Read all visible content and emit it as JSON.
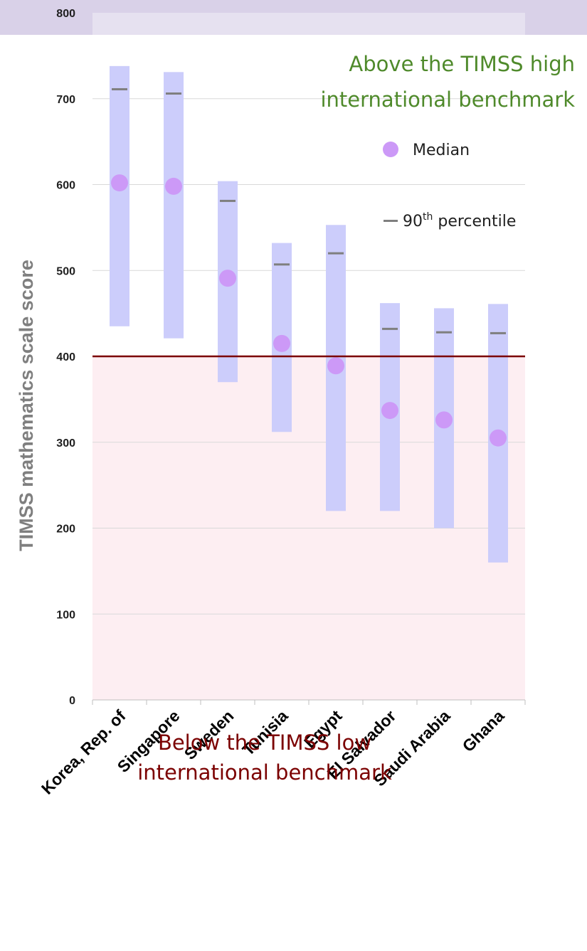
{
  "chart_data": {
    "type": "bar",
    "ylabel": "TIMSS mathematics scale score",
    "ylim": [
      0,
      800
    ],
    "yticks": [
      0,
      100,
      200,
      300,
      400,
      500,
      600,
      700,
      800
    ],
    "grid": true,
    "categories": [
      "Korea, Rep. of",
      "Singapore",
      "Sweden",
      "Tunisia",
      "Egypt",
      "El Salvador",
      "Saudi Arabia",
      "Ghana"
    ],
    "series": [
      {
        "name": "",
        "kind": "range",
        "low": [
          435,
          421,
          370,
          312,
          220,
          220,
          200,
          160
        ],
        "high": [
          738,
          731,
          604,
          532,
          553,
          462,
          456,
          461
        ]
      },
      {
        "name": "Median",
        "kind": "point",
        "values": [
          602,
          598,
          491,
          415,
          389,
          337,
          326,
          305
        ]
      },
      {
        "name": "90th percentile",
        "kind": "marker",
        "values": [
          711,
          706,
          581,
          507,
          520,
          432,
          428,
          427
        ]
      }
    ],
    "threshold": {
      "value": 400,
      "color": "#7b0000"
    },
    "zones": {
      "above_top": 475,
      "above_text_line1": "Above the TIMSS high",
      "above_text_line2": "international benchmark",
      "below_text_line1": "Below the TIMSS low",
      "below_text_line2": "international benchmark"
    },
    "legend": {
      "median_label": "Median",
      "p90_label_prefix": "90",
      "p90_label_sup": "th",
      "p90_label_suffix": " percentile",
      "placement": "top-right"
    },
    "colors": {
      "range": "#cccdfb",
      "median": "#cc99f7",
      "p90": "#7f7f7f",
      "top_band": "#d9d1e8",
      "mid_band": "#e6e1f0",
      "below_band": "#fdeef2",
      "above_text": "#4f8a2b",
      "below_text": "#7b0000"
    }
  }
}
